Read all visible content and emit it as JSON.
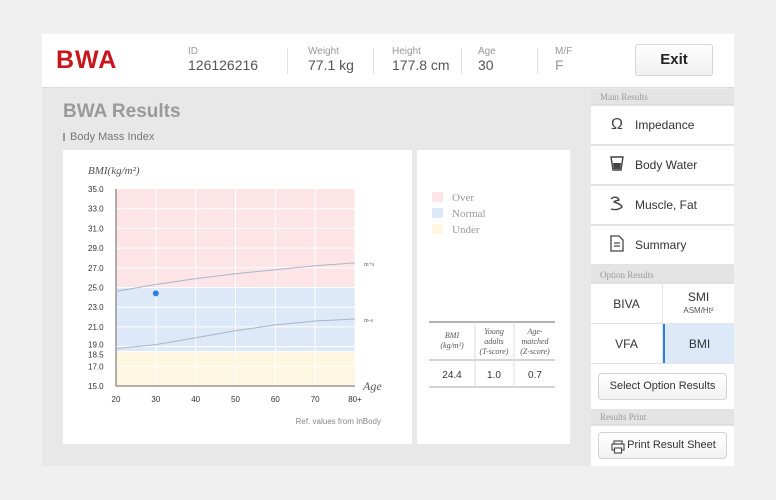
{
  "header": {
    "logo": "BWA",
    "fields": [
      {
        "label": "ID",
        "value": "126126216"
      },
      {
        "label": "Weight",
        "value": "77.1 kg"
      },
      {
        "label": "Height",
        "value": "177.8 cm"
      },
      {
        "label": "Age",
        "value": "30"
      },
      {
        "label": "M/F",
        "value": "F"
      }
    ],
    "exit_label": "Exit"
  },
  "main": {
    "title": "BWA Results",
    "subtitle": "Body Mass Index",
    "ref_note": "Ref. values from InBody"
  },
  "chart_data": {
    "type": "line",
    "ylabel": "BMI(kg/m²)",
    "xlabel": "Age",
    "x_ticks": [
      "20",
      "30",
      "40",
      "50",
      "60",
      "70",
      "80+"
    ],
    "y_ticks": [
      "15.0",
      "17.0",
      "18.5",
      "19.0",
      "21.0",
      "23.0",
      "25.0",
      "27.0",
      "29.0",
      "31.0",
      "33.0",
      "35.0"
    ],
    "ylim": [
      15,
      35
    ],
    "xlim": [
      20,
      80
    ],
    "zones": [
      {
        "name": "Over",
        "from": 25,
        "to": 35,
        "color": "#fde4e6"
      },
      {
        "name": "Normal",
        "from": 18.5,
        "to": 25,
        "color": "#dde8f8"
      },
      {
        "name": "Under",
        "from": 15,
        "to": 18.5,
        "color": "#fdf6e0"
      }
    ],
    "series": [
      {
        "name": "m+s",
        "x": [
          20,
          30,
          40,
          50,
          60,
          70,
          80
        ],
        "y": [
          24.6,
          25.3,
          25.9,
          26.4,
          26.8,
          27.2,
          27.5
        ]
      },
      {
        "name": "m-s",
        "x": [
          20,
          30,
          40,
          50,
          60,
          70,
          80
        ],
        "y": [
          18.8,
          19.2,
          19.9,
          20.6,
          21.2,
          21.6,
          21.8
        ]
      }
    ],
    "point": {
      "x": 30,
      "y": 24.4
    },
    "grid": true
  },
  "legend": {
    "items": [
      {
        "label": "Over",
        "color": "#fde4e6"
      },
      {
        "label": "Normal",
        "color": "#dde8f8"
      },
      {
        "label": "Under",
        "color": "#fdf6e0"
      }
    ],
    "table": {
      "h1a": "BMI",
      "h1b": "(kg/m²)",
      "h2a": "Young",
      "h2b": "adults",
      "h2c": "(T-score)",
      "h3a": "Age-",
      "h3b": "matched",
      "h3c": "(Z-score)",
      "v1": "24.4",
      "v2": "1.0",
      "v3": "0.7"
    }
  },
  "sidebar": {
    "main_label": "Main Results",
    "main_items": [
      {
        "label": "Impedance",
        "icon": "omega-icon"
      },
      {
        "label": "Body Water",
        "icon": "water-cup-icon"
      },
      {
        "label": "Muscle, Fat",
        "icon": "muscle-arm-icon"
      },
      {
        "label": "Summary",
        "icon": "document-icon"
      }
    ],
    "option_label": "Option Results",
    "options": {
      "biva": "BIVA",
      "smi": "SMI",
      "smi_sub": "ASM/Ht²",
      "vfa": "VFA",
      "bmi": "BMI"
    },
    "select_option_label": "Select Option Results",
    "print_label": "Results Print",
    "print_button": "Print Result Sheet",
    "selected_color": "#2a82d8"
  }
}
